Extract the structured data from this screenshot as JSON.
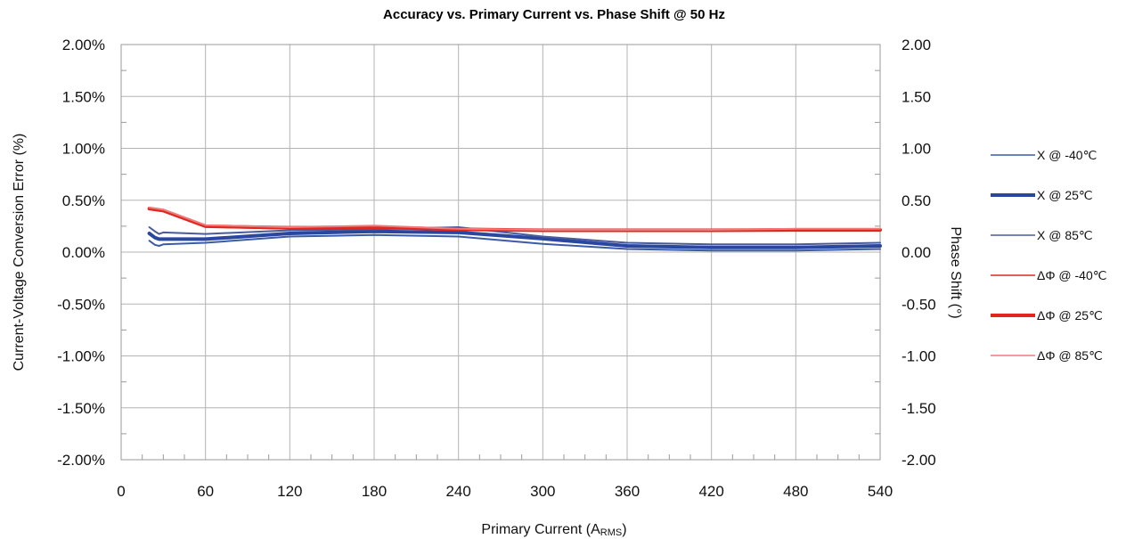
{
  "chart_data": {
    "type": "line",
    "title": "Accuracy vs. Primary Current vs. Phase Shift @ 50 Hz",
    "xlabel_main": "Primary Current (A",
    "xlabel_sub": "RMS",
    "xlabel_end": ")",
    "ylabel_left": "Current-Voltage Conversion Error (%)",
    "ylabel_right": "Phase Shift (°)",
    "xlim": [
      0,
      540
    ],
    "ylim_left": [
      -2.0,
      2.0
    ],
    "ylim_right": [
      -2.0,
      2.0
    ],
    "x_ticks": [
      0,
      60,
      120,
      180,
      240,
      300,
      360,
      420,
      480,
      540
    ],
    "x_tick_labels": [
      "0",
      "60",
      "120",
      "180",
      "240",
      "300",
      "360",
      "420",
      "480",
      "540"
    ],
    "y_ticks": [
      2.0,
      1.5,
      1.0,
      0.5,
      0.0,
      -0.5,
      -1.0,
      -1.5,
      -2.0
    ],
    "y_left_tick_labels": [
      "2.00%",
      "1.50%",
      "1.00%",
      "0.50%",
      "0.00%",
      "-0.50%",
      "-1.00%",
      "-1.50%",
      "-2.00%"
    ],
    "y_right_tick_labels": [
      "2.00",
      "1.50",
      "1.00",
      "0.50",
      "0.00",
      "-0.50",
      "-1.00",
      "-1.50",
      "-2.00"
    ],
    "grid": true,
    "legend_position": "right",
    "series": [
      {
        "name": "X @ -40℃",
        "color": "#3b5ba9",
        "width": "thin",
        "points": [
          [
            20,
            0.11
          ],
          [
            24,
            0.07
          ],
          [
            27,
            0.06
          ],
          [
            30,
            0.075
          ],
          [
            60,
            0.09
          ],
          [
            120,
            0.15
          ],
          [
            180,
            0.165
          ],
          [
            240,
            0.15
          ],
          [
            300,
            0.08
          ],
          [
            360,
            0.03
          ],
          [
            420,
            0.015
          ],
          [
            480,
            0.015
          ],
          [
            540,
            0.03
          ]
        ]
      },
      {
        "name": "X @ 25℃",
        "color": "#2a47a0",
        "width": "thick",
        "points": [
          [
            20,
            0.18
          ],
          [
            24,
            0.14
          ],
          [
            27,
            0.125
          ],
          [
            30,
            0.125
          ],
          [
            60,
            0.125
          ],
          [
            120,
            0.18
          ],
          [
            180,
            0.2
          ],
          [
            240,
            0.19
          ],
          [
            300,
            0.13
          ],
          [
            360,
            0.06
          ],
          [
            420,
            0.045
          ],
          [
            480,
            0.045
          ],
          [
            540,
            0.06
          ]
        ]
      },
      {
        "name": "X @ 85℃",
        "color": "#4a5a9a",
        "width": "thin",
        "points": [
          [
            20,
            0.24
          ],
          [
            24,
            0.2
          ],
          [
            27,
            0.175
          ],
          [
            30,
            0.19
          ],
          [
            60,
            0.175
          ],
          [
            120,
            0.21
          ],
          [
            180,
            0.22
          ],
          [
            240,
            0.24
          ],
          [
            300,
            0.15
          ],
          [
            360,
            0.09
          ],
          [
            420,
            0.075
          ],
          [
            480,
            0.075
          ],
          [
            540,
            0.09
          ]
        ]
      },
      {
        "name": "ΔΦ @ -40℃",
        "color": "#e0261f",
        "width": "thin",
        "points": [
          [
            20,
            0.42
          ],
          [
            30,
            0.4
          ],
          [
            60,
            0.245
          ],
          [
            120,
            0.225
          ],
          [
            180,
            0.23
          ],
          [
            240,
            0.215
          ],
          [
            300,
            0.205
          ],
          [
            360,
            0.205
          ],
          [
            420,
            0.205
          ],
          [
            480,
            0.205
          ],
          [
            540,
            0.205
          ]
        ]
      },
      {
        "name": "ΔΦ @ 25℃",
        "color": "#e0261f",
        "width": "thick",
        "points": [
          [
            20,
            0.42
          ],
          [
            30,
            0.4
          ],
          [
            60,
            0.25
          ],
          [
            120,
            0.235
          ],
          [
            180,
            0.24
          ],
          [
            240,
            0.22
          ],
          [
            300,
            0.21
          ],
          [
            360,
            0.21
          ],
          [
            420,
            0.21
          ],
          [
            480,
            0.215
          ],
          [
            540,
            0.215
          ]
        ]
      },
      {
        "name": "ΔΦ @ 85℃",
        "color": "#f07a7a",
        "width": "thin",
        "points": [
          [
            20,
            0.43
          ],
          [
            30,
            0.41
          ],
          [
            60,
            0.26
          ],
          [
            120,
            0.24
          ],
          [
            180,
            0.255
          ],
          [
            240,
            0.225
          ],
          [
            300,
            0.215
          ],
          [
            360,
            0.215
          ],
          [
            420,
            0.215
          ],
          [
            480,
            0.225
          ],
          [
            540,
            0.225
          ]
        ]
      }
    ]
  }
}
